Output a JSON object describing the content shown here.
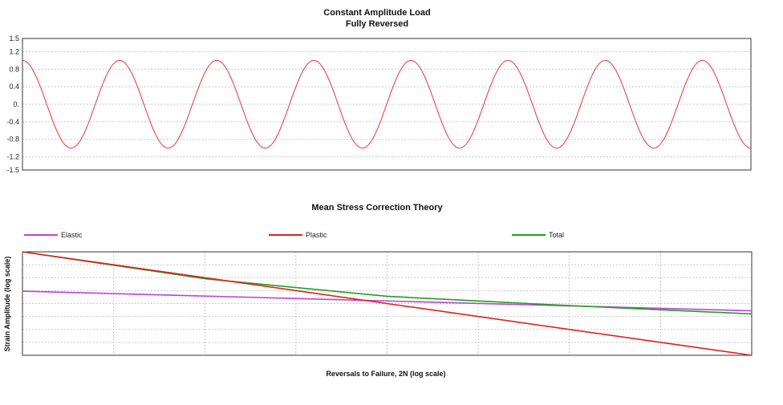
{
  "chart_data": [
    {
      "type": "line",
      "title": "Constant Amplitude Load",
      "subtitle": "Fully Reversed",
      "xlabel": "",
      "ylabel": "",
      "ylim": [
        -1.5,
        1.5
      ],
      "yticks": [
        "1.5",
        "1.2",
        "0.8",
        "0.4",
        "0.",
        "-0.4",
        "-0.8",
        "-1.2",
        "-1.5"
      ],
      "ytick_values": [
        1.5,
        1.2,
        0.8,
        0.4,
        0,
        -0.4,
        -0.8,
        -1.2,
        -1.5
      ],
      "grid": true,
      "series": [
        {
          "color": "#e8464a",
          "waveform": "cosine",
          "amplitude": 1.0,
          "cycles": 7.5
        }
      ]
    },
    {
      "type": "line",
      "title": "Mean Stress Correction Theory",
      "xlabel": "Reversals to Failure, 2N (log scale)",
      "ylabel": "Strain Amplitude (log scale)",
      "xscale": "log",
      "yscale": "log",
      "legend_position": "top",
      "grid": true,
      "series": [
        {
          "name": "Elastic",
          "color": "#c040d8",
          "x": [
            0,
            1
          ],
          "y": [
            0.62,
            0.43
          ]
        },
        {
          "name": "Plastic",
          "color": "#e02020",
          "x": [
            0,
            1
          ],
          "y": [
            1.0,
            0.0
          ]
        },
        {
          "name": "Total",
          "color": "#20a020",
          "x": [
            0,
            0.25,
            0.5,
            0.75,
            1
          ],
          "y": [
            1.0,
            0.74,
            0.57,
            0.48,
            0.4
          ]
        }
      ]
    }
  ]
}
